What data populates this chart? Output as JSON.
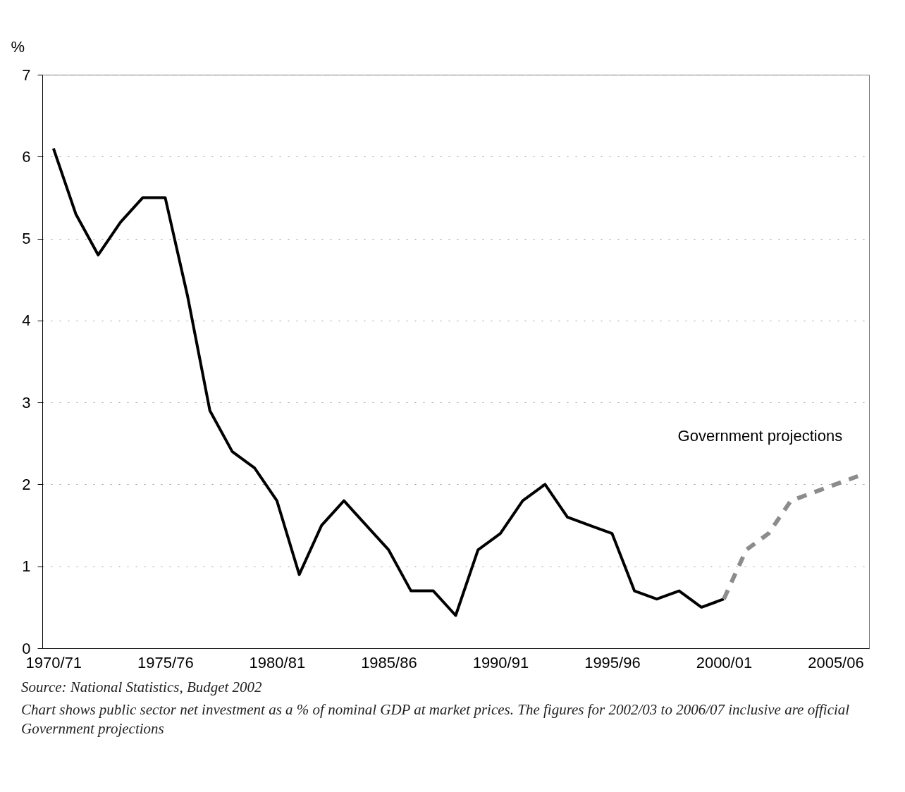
{
  "chart_data": {
    "type": "line",
    "ylabel": "%",
    "categories": [
      "1970/71",
      null,
      null,
      null,
      null,
      "1975/76",
      null,
      null,
      null,
      null,
      "1980/81",
      null,
      null,
      null,
      null,
      "1985/86",
      null,
      null,
      null,
      null,
      "1990/91",
      null,
      null,
      null,
      null,
      "1995/96",
      null,
      null,
      null,
      null,
      "2000/01",
      null,
      null,
      null,
      null,
      "2005/06",
      null
    ],
    "ylim": [
      0,
      7
    ],
    "yticks": [
      0,
      1,
      2,
      3,
      4,
      5,
      6,
      7
    ],
    "grid": "y",
    "series": [
      {
        "color": "#000000",
        "line_style": "solid",
        "values": [
          6.1,
          5.3,
          4.8,
          5.2,
          5.5,
          5.5,
          4.3,
          2.9,
          2.4,
          2.2,
          1.8,
          0.9,
          1.5,
          1.8,
          1.5,
          1.2,
          0.7,
          0.7,
          0.4,
          1.2,
          1.4,
          1.8,
          2.0,
          1.6,
          1.5,
          1.4,
          0.7,
          0.6,
          0.7,
          0.5,
          0.6,
          null,
          null,
          null,
          null,
          null,
          null
        ]
      },
      {
        "name": "Government projections",
        "color": "#8c8c8c",
        "line_style": "dashed",
        "values": [
          null,
          null,
          null,
          null,
          null,
          null,
          null,
          null,
          null,
          null,
          null,
          null,
          null,
          null,
          null,
          null,
          null,
          null,
          null,
          null,
          null,
          null,
          null,
          null,
          null,
          null,
          null,
          null,
          null,
          null,
          0.6,
          1.2,
          1.4,
          1.8,
          1.9,
          2.0,
          2.1
        ]
      }
    ],
    "annotations": [
      "Source: National Statistics, Budget 2002",
      "Chart shows public sector net investment as a % of nominal GDP at market prices. The figures for 2002/03 to 2006/07 inclusive are official Government projections"
    ]
  }
}
